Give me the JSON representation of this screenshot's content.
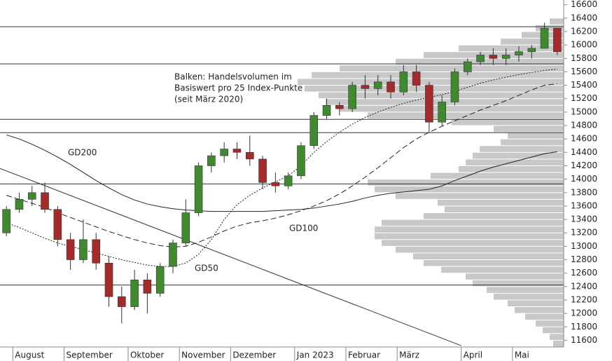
{
  "chart_data": {
    "type": "candlestick",
    "categories": [
      null,
      "August",
      null,
      null,
      null,
      "September",
      null,
      null,
      null,
      null,
      "Oktober",
      null,
      null,
      null,
      "November",
      null,
      null,
      null,
      "Dezember",
      null,
      null,
      null,
      null,
      "Jan 2023",
      null,
      null,
      null,
      "Februar",
      null,
      null,
      null,
      "März",
      null,
      null,
      null,
      null,
      "April",
      null,
      null,
      null,
      "Mai",
      null,
      null,
      null
    ],
    "open": [
      13200,
      13550,
      13700,
      13800,
      13550,
      13100,
      12800,
      13100,
      12750,
      12250,
      12100,
      12500,
      12300,
      12700,
      13050,
      13500,
      14200,
      14350,
      14450,
      14400,
      14300,
      13950,
      13900,
      14050,
      14500,
      14950,
      15100,
      15050,
      15400,
      15350,
      15450,
      15300,
      15600,
      15400,
      14850,
      15150,
      15600,
      15750,
      15850,
      15800,
      15850,
      15900,
      15950,
      16250
    ],
    "high": [
      13600,
      13800,
      13900,
      13950,
      13600,
      13200,
      13400,
      13200,
      12850,
      12400,
      12650,
      12600,
      12750,
      13100,
      13700,
      14250,
      14400,
      14550,
      14550,
      14650,
      14350,
      14100,
      14100,
      14550,
      15000,
      15200,
      15150,
      15450,
      15550,
      15550,
      15550,
      15700,
      15700,
      15450,
      15250,
      15650,
      15800,
      15900,
      15950,
      15950,
      15980,
      16000,
      16330,
      16250
    ],
    "low": [
      13150,
      13500,
      13600,
      13500,
      13000,
      12650,
      12750,
      12650,
      12100,
      11850,
      12050,
      12000,
      12250,
      12600,
      13000,
      13450,
      14100,
      14250,
      14300,
      14200,
      13850,
      13800,
      13850,
      14000,
      14450,
      14900,
      14950,
      15000,
      15200,
      15250,
      15200,
      15250,
      15300,
      14700,
      14800,
      15100,
      15550,
      15700,
      15700,
      15700,
      15750,
      15800,
      15950,
      15850
    ],
    "close": [
      13550,
      13700,
      13800,
      13550,
      13100,
      12800,
      13100,
      12750,
      12250,
      12100,
      12500,
      12300,
      12700,
      13050,
      13500,
      14200,
      14350,
      14450,
      14400,
      14300,
      13950,
      13900,
      14050,
      14500,
      14950,
      15100,
      15050,
      15400,
      15350,
      15450,
      15300,
      15600,
      15400,
      14850,
      15150,
      15600,
      15750,
      15850,
      15800,
      15850,
      15900,
      15950,
      16250,
      15900
    ],
    "up_color": "#3f8a2f",
    "down_color": "#a52a2a",
    "series": [
      {
        "name": "GD200",
        "style": "solid",
        "color": "#222222",
        "values": [
          14660,
          14600,
          14520,
          14430,
          14330,
          14220,
          14100,
          13980,
          13870,
          13770,
          13690,
          13630,
          13590,
          13560,
          13540,
          13530,
          13520,
          13520,
          13520,
          13520,
          13520,
          13530,
          13540,
          13550,
          13570,
          13600,
          13630,
          13670,
          13720,
          13760,
          13790,
          13810,
          13830,
          13850,
          13900,
          13980,
          14050,
          14120,
          14180,
          14230,
          14280,
          14330,
          14380,
          14410
        ]
      },
      {
        "name": "GD100",
        "style": "dashed",
        "color": "#222222",
        "values": [
          13760,
          13700,
          13640,
          13580,
          13500,
          13430,
          13360,
          13290,
          13220,
          13160,
          13100,
          13050,
          13010,
          12990,
          13000,
          13060,
          13140,
          13230,
          13300,
          13350,
          13380,
          13420,
          13470,
          13530,
          13600,
          13680,
          13780,
          13900,
          14030,
          14170,
          14320,
          14470,
          14600,
          14700,
          14790,
          14870,
          14950,
          15030,
          15100,
          15170,
          15250,
          15330,
          15400,
          15420
        ]
      },
      {
        "name": "GD50",
        "style": "dotted",
        "color": "#222222",
        "values": [
          13350,
          13280,
          13200,
          13120,
          13050,
          13000,
          12950,
          12900,
          12850,
          12800,
          12760,
          12720,
          12700,
          12700,
          12750,
          12880,
          13100,
          13400,
          13620,
          13760,
          13870,
          13960,
          14050,
          14200,
          14400,
          14560,
          14700,
          14820,
          14920,
          15000,
          15070,
          15130,
          15180,
          15220,
          15260,
          15310,
          15370,
          15430,
          15480,
          15520,
          15560,
          15590,
          15620,
          15640
        ]
      }
    ],
    "levels": [
      16272,
      15718,
      14892,
      14693,
      13929,
      12423
    ],
    "trendline": {
      "x": [
        0,
        36
      ],
      "y": [
        14160,
        11520
      ]
    },
    "volume_profile": {
      "color": "#c8c8c8",
      "bins": [
        11500,
        11600,
        11700,
        11800,
        11900,
        12000,
        12100,
        12200,
        12300,
        12400,
        12500,
        12600,
        12700,
        12800,
        12900,
        13000,
        13100,
        13200,
        13300,
        13400,
        13500,
        13600,
        13700,
        13800,
        13900,
        14000,
        14100,
        14200,
        14300,
        14400,
        14500,
        14600,
        14700,
        14800,
        14900,
        15000,
        15100,
        15200,
        15300,
        15400,
        15500,
        15600,
        15700,
        15800,
        15900,
        16000,
        16100,
        16200,
        16300,
        16400
      ],
      "values": [
        15,
        20,
        30,
        40,
        55,
        70,
        80,
        100,
        110,
        130,
        140,
        175,
        200,
        215,
        240,
        260,
        270,
        270,
        260,
        200,
        170,
        180,
        240,
        270,
        280,
        190,
        150,
        140,
        130,
        120,
        90,
        80,
        100,
        160,
        280,
        320,
        340,
        350,
        370,
        380,
        360,
        320,
        240,
        200,
        150,
        90,
        60,
        40,
        20
      ],
      "xlim": [
        0,
        400
      ]
    },
    "annotation": [
      "Balken: Handelsvolumen im",
      "Basiswert pro 25 Index-Punkte",
      "(seit März 2020)"
    ],
    "ylim": [
      11500,
      16670
    ],
    "yticks": [
      11600,
      11800,
      12000,
      12200,
      12400,
      12600,
      12800,
      13000,
      13200,
      13400,
      13600,
      13800,
      14000,
      14200,
      14400,
      14600,
      14800,
      15000,
      15200,
      15400,
      15600,
      15800,
      16000,
      16200,
      16400,
      16600
    ]
  }
}
